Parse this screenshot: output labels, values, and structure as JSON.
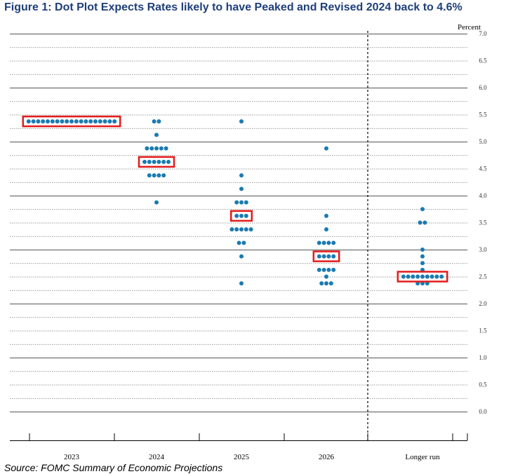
{
  "title": "Figure 1: Dot Plot Expects Rates likely to have Peaked and Revised 2024 back to 4.6%",
  "source": "Source: FOMC Summary of Economic Projections",
  "colors": {
    "dot": "#1a7bb0",
    "highlight": "#e31b1b",
    "grid": "#555555",
    "gridMinor": "#777777"
  },
  "chart_data": {
    "type": "scatter",
    "title": "",
    "xlabel": "",
    "ylabel": "Percent",
    "ylim": [
      0,
      7
    ],
    "yticks": [
      "0.0",
      "0.5",
      "1.0",
      "1.5",
      "2.0",
      "2.5",
      "3.0",
      "3.5",
      "4.0",
      "4.5",
      "5.0",
      "5.5",
      "6.0",
      "6.5",
      "7.0"
    ],
    "categories": [
      "2023",
      "2024",
      "2025",
      "2026",
      "Longer run"
    ],
    "separator_after": "2026",
    "series": [
      {
        "category": "2023",
        "points": [
          {
            "y": 5.375,
            "count": 19
          }
        ]
      },
      {
        "category": "2024",
        "points": [
          {
            "y": 5.375,
            "count": 2
          },
          {
            "y": 5.125,
            "count": 1
          },
          {
            "y": 4.875,
            "count": 5
          },
          {
            "y": 4.625,
            "count": 6
          },
          {
            "y": 4.375,
            "count": 4
          },
          {
            "y": 3.875,
            "count": 1
          }
        ]
      },
      {
        "category": "2025",
        "points": [
          {
            "y": 5.375,
            "count": 1
          },
          {
            "y": 4.375,
            "count": 1
          },
          {
            "y": 4.125,
            "count": 1
          },
          {
            "y": 3.875,
            "count": 3
          },
          {
            "y": 3.625,
            "count": 3
          },
          {
            "y": 3.375,
            "count": 5
          },
          {
            "y": 3.125,
            "count": 2
          },
          {
            "y": 2.875,
            "count": 1
          },
          {
            "y": 2.375,
            "count": 1
          }
        ]
      },
      {
        "category": "2026",
        "points": [
          {
            "y": 4.875,
            "count": 1
          },
          {
            "y": 3.625,
            "count": 1
          },
          {
            "y": 3.375,
            "count": 1
          },
          {
            "y": 3.125,
            "count": 4
          },
          {
            "y": 2.875,
            "count": 4
          },
          {
            "y": 2.625,
            "count": 4
          },
          {
            "y": 2.5,
            "count": 1
          },
          {
            "y": 2.375,
            "count": 3
          }
        ]
      },
      {
        "category": "Longer run",
        "points": [
          {
            "y": 3.75,
            "count": 1
          },
          {
            "y": 3.5,
            "count": 2
          },
          {
            "y": 3.0,
            "count": 1
          },
          {
            "y": 2.875,
            "count": 1
          },
          {
            "y": 2.75,
            "count": 1
          },
          {
            "y": 2.625,
            "count": 1
          },
          {
            "y": 2.5,
            "count": 9
          },
          {
            "y": 2.375,
            "count": 3
          }
        ]
      }
    ],
    "highlights": [
      {
        "category": "2023",
        "y": 5.375
      },
      {
        "category": "2024",
        "y": 4.625
      },
      {
        "category": "2025",
        "y": 3.625
      },
      {
        "category": "2026",
        "y": 2.875
      },
      {
        "category": "Longer run",
        "y": 2.5
      }
    ]
  }
}
